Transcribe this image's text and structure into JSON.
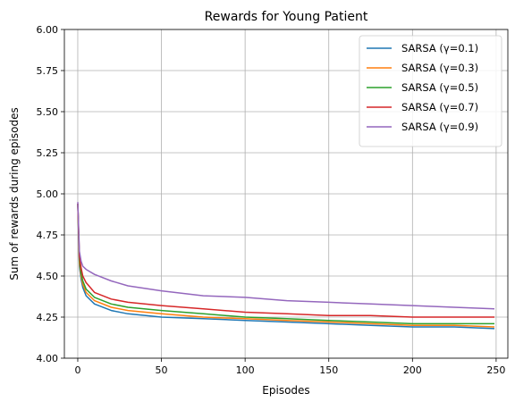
{
  "chart_data": {
    "type": "line",
    "title": "Rewards for Young Patient",
    "xlabel": "Episodes",
    "ylabel": "Sum of rewards during episodes",
    "xlim": [
      -8,
      257
    ],
    "ylim": [
      4.0,
      6.0
    ],
    "xticks": [
      0,
      50,
      100,
      150,
      200,
      250
    ],
    "xtick_labels": [
      "0",
      "50",
      "100",
      "150",
      "200",
      "250"
    ],
    "yticks": [
      4.0,
      4.25,
      4.5,
      4.75,
      5.0,
      5.25,
      5.5,
      5.75,
      6.0
    ],
    "ytick_labels": [
      "4.00",
      "4.25",
      "4.50",
      "4.75",
      "5.00",
      "5.25",
      "5.50",
      "5.75",
      "6.00"
    ],
    "grid": true,
    "legend_position": "top-right",
    "series": [
      {
        "name": "SARSA (γ=0.1)",
        "color": "#1f77b4",
        "x": [
          0,
          1,
          2,
          3,
          5,
          10,
          20,
          30,
          50,
          75,
          100,
          125,
          150,
          175,
          200,
          225,
          249
        ],
        "y": [
          4.94,
          4.56,
          4.48,
          4.43,
          4.38,
          4.33,
          4.29,
          4.27,
          4.25,
          4.24,
          4.23,
          4.22,
          4.21,
          4.2,
          4.19,
          4.19,
          4.18
        ]
      },
      {
        "name": "SARSA (γ=0.3)",
        "color": "#ff7f0e",
        "x": [
          0,
          1,
          2,
          3,
          5,
          10,
          20,
          30,
          50,
          75,
          100,
          125,
          150,
          175,
          200,
          225,
          249
        ],
        "y": [
          4.94,
          4.58,
          4.5,
          4.45,
          4.4,
          4.35,
          4.31,
          4.29,
          4.27,
          4.25,
          4.24,
          4.23,
          4.22,
          4.21,
          4.2,
          4.2,
          4.19
        ]
      },
      {
        "name": "SARSA (γ=0.5)",
        "color": "#2ca02c",
        "x": [
          0,
          1,
          2,
          3,
          5,
          10,
          20,
          30,
          50,
          75,
          100,
          125,
          150,
          175,
          200,
          225,
          249
        ],
        "y": [
          4.94,
          4.6,
          4.52,
          4.47,
          4.42,
          4.37,
          4.33,
          4.31,
          4.29,
          4.27,
          4.25,
          4.24,
          4.23,
          4.22,
          4.21,
          4.21,
          4.21
        ]
      },
      {
        "name": "SARSA (γ=0.7)",
        "color": "#d62728",
        "x": [
          0,
          1,
          2,
          3,
          5,
          10,
          20,
          30,
          50,
          75,
          100,
          125,
          150,
          175,
          200,
          225,
          249
        ],
        "y": [
          4.94,
          4.62,
          4.55,
          4.5,
          4.46,
          4.4,
          4.36,
          4.34,
          4.32,
          4.3,
          4.28,
          4.27,
          4.26,
          4.26,
          4.25,
          4.25,
          4.25
        ]
      },
      {
        "name": "SARSA (γ=0.9)",
        "color": "#9467bd",
        "x": [
          0,
          1,
          2,
          3,
          5,
          10,
          20,
          30,
          50,
          75,
          100,
          125,
          150,
          175,
          200,
          225,
          249
        ],
        "y": [
          4.95,
          4.65,
          4.59,
          4.56,
          4.54,
          4.51,
          4.47,
          4.44,
          4.41,
          4.38,
          4.37,
          4.35,
          4.34,
          4.33,
          4.32,
          4.31,
          4.3
        ]
      }
    ]
  }
}
